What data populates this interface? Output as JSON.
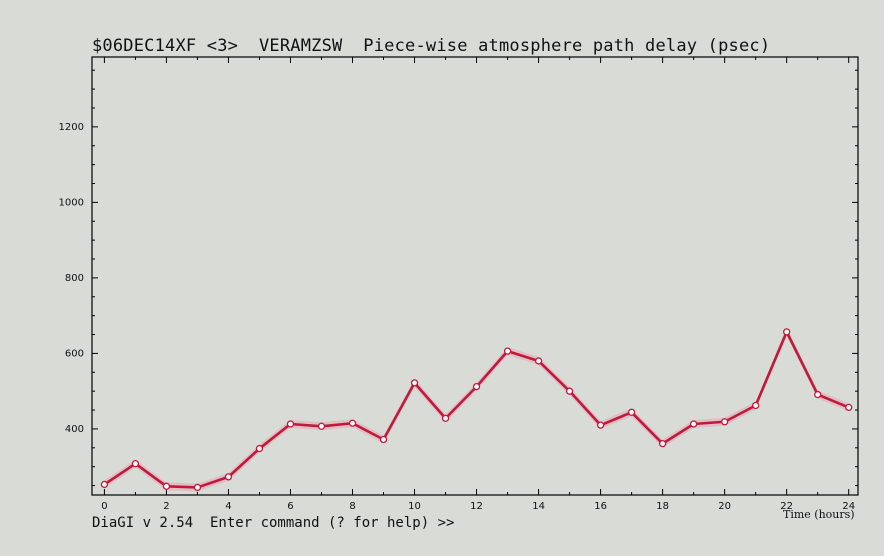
{
  "header": {
    "title": "$06DEC14XF <3>  VERAMZSW  Piece-wise atmosphere path delay (psec)"
  },
  "footer": {
    "prompt": "DiaGI v 2.54  Enter command (? for help) >>"
  },
  "colors": {
    "line": "#c0193a",
    "band": "#e6a5b8",
    "point_fill": "#ffffff",
    "axes": "#000000"
  },
  "chart_data": {
    "type": "line",
    "title": "$06DEC14XF <3>  VERAMZSW  Piece-wise atmosphere path delay (psec)",
    "xlabel": "Time (hours)",
    "ylabel": "",
    "xlim": [
      -0.4,
      24.3
    ],
    "ylim": [
      225,
      1385
    ],
    "x_ticks": [
      0,
      2,
      4,
      6,
      8,
      10,
      12,
      14,
      16,
      18,
      20,
      22,
      24
    ],
    "y_ticks": [
      400,
      600,
      800,
      1000,
      1200
    ],
    "grid": false,
    "series": [
      {
        "x": [
          0,
          1,
          2,
          3,
          4,
          5,
          6,
          7,
          8,
          9,
          10,
          11,
          12,
          13,
          14,
          15,
          16,
          17,
          18,
          19,
          20,
          21,
          22,
          23,
          24
        ],
        "values": [
          253,
          308,
          248,
          245,
          273,
          348,
          413,
          407,
          415,
          372,
          522,
          428,
          512,
          606,
          580,
          500,
          410,
          444,
          361,
          413,
          419,
          462,
          657,
          491,
          457
        ]
      }
    ]
  }
}
